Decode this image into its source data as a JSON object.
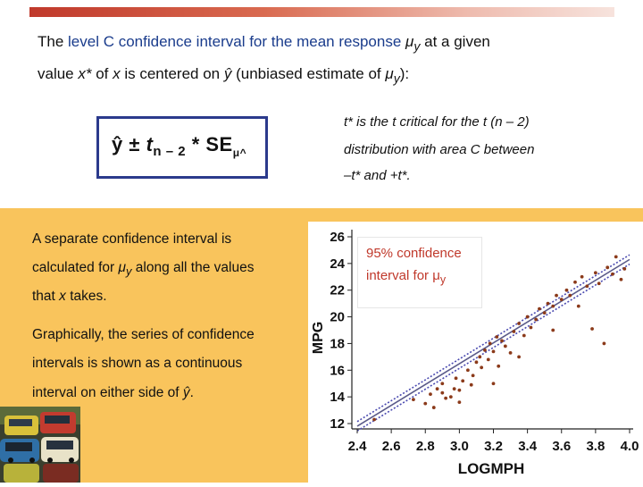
{
  "header": {
    "line1_pre": "The ",
    "line1_blue": "level C confidence interval for the mean response",
    "line1_mu": " μ",
    "line1_sub": "y",
    "line1_post": " at a given",
    "line2_a": "value ",
    "line2_xstar": "x*",
    "line2_b": " of ",
    "line2_x": "x",
    "line2_c": " is centered on ",
    "line2_yhat": "ŷ",
    "line2_d": " (unbiased estimate of ",
    "line2_mu": "μ",
    "line2_sub": "y",
    "line2_e": "):"
  },
  "formula": {
    "yhat": "ŷ",
    "pm": " ± ",
    "t": "t",
    "sub": "n – 2",
    "star_se": " * SE",
    "mu": "μ",
    "hat": "^"
  },
  "t_note": {
    "line1": "t* is the t critical for the t (n – 2)",
    "line2": "distribution with area C between",
    "line3": "–t* and +t*."
  },
  "left_text": {
    "line1": "A separate confidence interval is",
    "line2_pre": "calculated for ",
    "line2_mu": "μ",
    "line2_sub": "y",
    "line2_post": " along all the values",
    "line3_pre": "that ",
    "line3_x": "x",
    "line3_post": " takes.",
    "line4": "Graphically, the series of confidence",
    "line5": "intervals is shown as a continuous",
    "line6_pre": "interval on either side of ",
    "line6_yhat": "ŷ",
    "line6_post": "."
  },
  "ci_label": {
    "line1": "95% confidence",
    "line2_pre": "interval for ",
    "line2_mu": "μ",
    "line2_sub": "y"
  },
  "colors": {
    "accent_red": "#c0392b",
    "title_blue": "#1a3c8c",
    "box_border": "#2b3a8c",
    "panel_yellow": "#f9c45c",
    "point_color": "#8b3a1a",
    "line_color": "#4a4ab0"
  },
  "chart_data": {
    "type": "scatter",
    "xlabel": "LOGMPH",
    "ylabel": "MPG",
    "xlim": [
      2.4,
      4.0
    ],
    "ylim": [
      12,
      26
    ],
    "x_ticks": [
      "2.4",
      "2.6",
      "2.8",
      "3.0",
      "3.2",
      "3.4",
      "3.6",
      "3.8",
      "4.0"
    ],
    "y_ticks": [
      "12",
      "14",
      "16",
      "18",
      "20",
      "22",
      "24",
      "26"
    ],
    "regression_line": {
      "x": [
        2.4,
        4.0
      ],
      "y": [
        11.8,
        24.3
      ]
    },
    "ci_half_width": 0.35,
    "points": [
      [
        2.5,
        12.3
      ],
      [
        2.73,
        13.8
      ],
      [
        2.8,
        13.5
      ],
      [
        2.83,
        14.2
      ],
      [
        2.85,
        13.2
      ],
      [
        2.87,
        14.6
      ],
      [
        2.9,
        14.3
      ],
      [
        2.9,
        15.0
      ],
      [
        2.95,
        14.0
      ],
      [
        2.97,
        14.6
      ],
      [
        2.98,
        15.4
      ],
      [
        3.0,
        13.6
      ],
      [
        3.0,
        14.5
      ],
      [
        3.02,
        15.2
      ],
      [
        3.05,
        16.0
      ],
      [
        3.07,
        14.9
      ],
      [
        3.08,
        15.6
      ],
      [
        3.1,
        16.6
      ],
      [
        3.12,
        17.0
      ],
      [
        3.13,
        16.2
      ],
      [
        3.15,
        17.5
      ],
      [
        3.17,
        16.8
      ],
      [
        3.18,
        18.0
      ],
      [
        3.2,
        17.4
      ],
      [
        3.22,
        18.5
      ],
      [
        3.23,
        16.3
      ],
      [
        3.25,
        18.2
      ],
      [
        3.27,
        17.8
      ],
      [
        3.3,
        17.3
      ],
      [
        3.32,
        18.9
      ],
      [
        3.35,
        19.5
      ],
      [
        3.38,
        18.6
      ],
      [
        3.4,
        20.0
      ],
      [
        3.42,
        19.2
      ],
      [
        3.45,
        19.8
      ],
      [
        3.47,
        20.6
      ],
      [
        3.5,
        20.3
      ],
      [
        3.52,
        21.0
      ],
      [
        3.55,
        20.8
      ],
      [
        3.57,
        21.6
      ],
      [
        3.6,
        21.3
      ],
      [
        3.63,
        22.0
      ],
      [
        3.65,
        21.6
      ],
      [
        3.68,
        22.6
      ],
      [
        3.7,
        20.8
      ],
      [
        3.72,
        23.0
      ],
      [
        3.75,
        22.3
      ],
      [
        3.78,
        19.1
      ],
      [
        3.8,
        23.3
      ],
      [
        3.82,
        22.5
      ],
      [
        3.85,
        18.0
      ],
      [
        3.87,
        23.7
      ],
      [
        3.9,
        23.2
      ],
      [
        3.92,
        24.5
      ],
      [
        3.95,
        22.8
      ],
      [
        3.97,
        23.6
      ],
      [
        3.35,
        17.0
      ],
      [
        3.55,
        19.0
      ],
      [
        3.2,
        15.0
      ],
      [
        2.92,
        13.9
      ]
    ]
  }
}
